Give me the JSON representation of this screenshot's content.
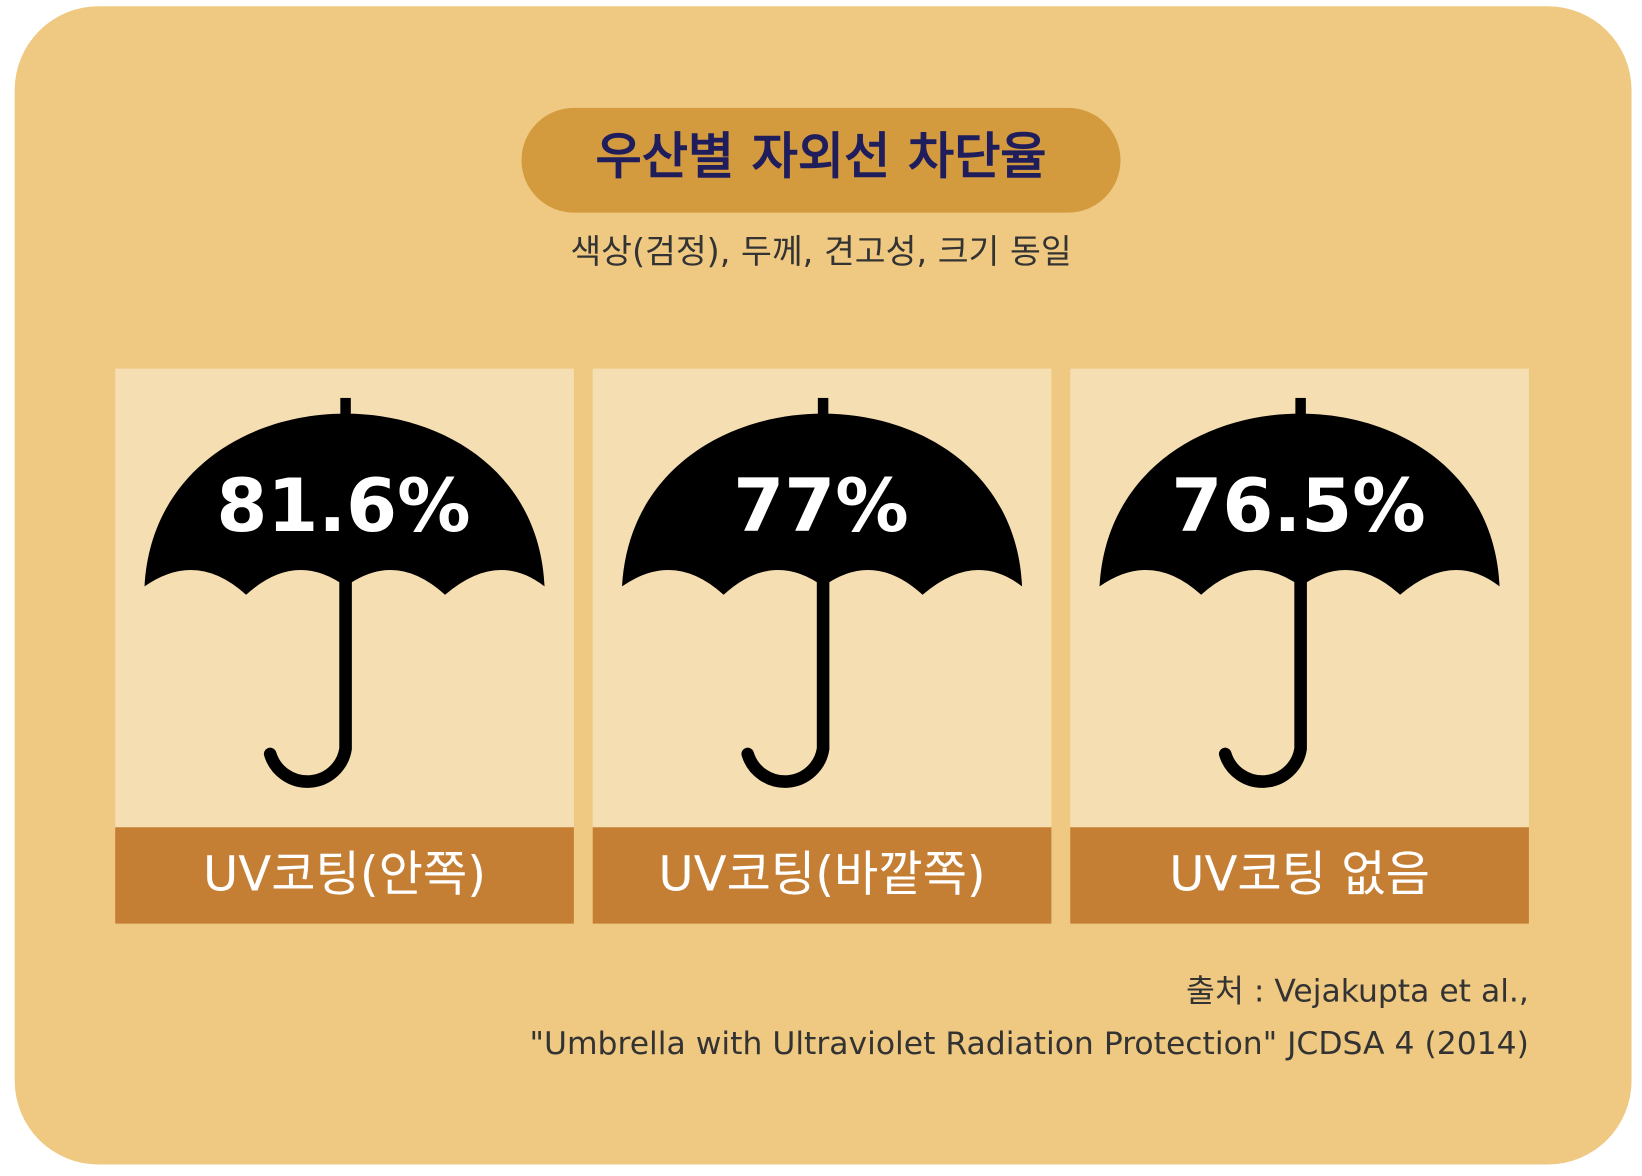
{
  "header": {
    "title": "우산별 자외선 차단율",
    "subtitle": "색상(검정), 두께, 견고성, 크기 동일"
  },
  "cards": [
    {
      "value": "81.6%",
      "label": "UV코팅(안쪽)"
    },
    {
      "value": "77%",
      "label": "UV코팅(바깥쪽)"
    },
    {
      "value": "76.5%",
      "label": "UV코팅 없음"
    }
  ],
  "source": {
    "line1": "출처 : Vejakupta et al.,",
    "line2": "\"Umbrella with Ultraviolet Radiation Protection\" JCDSA 4 (2014)"
  }
}
